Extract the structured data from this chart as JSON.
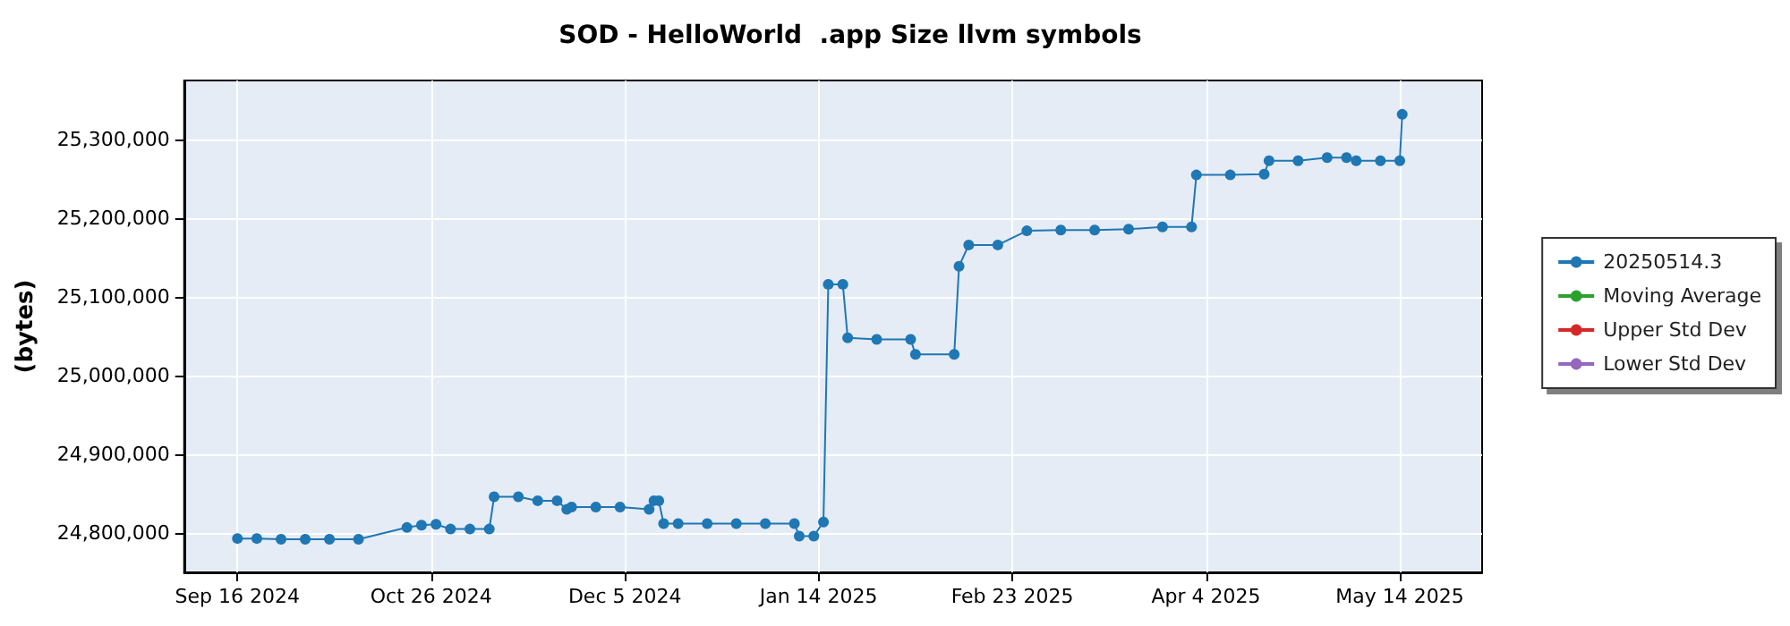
{
  "chart_data": {
    "type": "line",
    "title": "SOD - HelloWorld  .app Size llvm symbols",
    "ylabel": "(bytes)",
    "xlim": [
      "2024-09-05",
      "2025-05-31"
    ],
    "xticks": [
      {
        "value": "2024-09-16",
        "label": "Sep 16 2024"
      },
      {
        "value": "2024-10-26",
        "label": "Oct 26 2024"
      },
      {
        "value": "2024-12-05",
        "label": "Dec 5 2024"
      },
      {
        "value": "2025-01-14",
        "label": "Jan 14 2025"
      },
      {
        "value": "2025-02-23",
        "label": "Feb 23 2025"
      },
      {
        "value": "2025-04-04",
        "label": "Apr 4 2025"
      },
      {
        "value": "2025-05-14",
        "label": "May 14 2025"
      }
    ],
    "ylim": [
      24750000,
      25375000
    ],
    "yticks": [
      {
        "value": 24800000,
        "label": "24,800,000"
      },
      {
        "value": 24900000,
        "label": "24,900,000"
      },
      {
        "value": 25000000,
        "label": "25,000,000"
      },
      {
        "value": 25100000,
        "label": "25,100,000"
      },
      {
        "value": 25200000,
        "label": "25,200,000"
      },
      {
        "value": 25300000,
        "label": "25,300,000"
      }
    ],
    "x": [
      "2024-09-16",
      "2024-09-20",
      "2024-09-25",
      "2024-09-30",
      "2024-10-05",
      "2024-10-11",
      "2024-10-21",
      "2024-10-24",
      "2024-10-27",
      "2024-10-30",
      "2024-11-03",
      "2024-11-07",
      "2024-11-08",
      "2024-11-13",
      "2024-11-17",
      "2024-11-21",
      "2024-11-23",
      "2024-11-24",
      "2024-11-29",
      "2024-12-04",
      "2024-12-10",
      "2024-12-11",
      "2024-12-12",
      "2024-12-13",
      "2024-12-16",
      "2024-12-22",
      "2024-12-28",
      "2025-01-03",
      "2025-01-09",
      "2025-01-10",
      "2025-01-13",
      "2025-01-15",
      "2025-01-16",
      "2025-01-19",
      "2025-01-20",
      "2025-01-26",
      "2025-02-02",
      "2025-02-03",
      "2025-02-11",
      "2025-02-12",
      "2025-02-14",
      "2025-02-20",
      "2025-02-26",
      "2025-03-05",
      "2025-03-12",
      "2025-03-19",
      "2025-03-26",
      "2025-04-01",
      "2025-04-02",
      "2025-04-09",
      "2025-04-16",
      "2025-04-17",
      "2025-04-23",
      "2025-04-29",
      "2025-05-03",
      "2025-05-05",
      "2025-05-10",
      "2025-05-14",
      "2025-05-14T12:00"
    ],
    "series": [
      {
        "name": "20250514.3",
        "color": "#1f77b4",
        "values": [
          24793000,
          24793000,
          24792000,
          24792000,
          24792000,
          24792000,
          24807000,
          24810000,
          24811000,
          24805000,
          24805000,
          24805000,
          24846000,
          24846000,
          24841000,
          24841000,
          24830000,
          24833000,
          24833000,
          24833000,
          24830000,
          24841000,
          24841000,
          24812000,
          24812000,
          24812000,
          24812000,
          24812000,
          24812000,
          24796000,
          24796000,
          24814000,
          25116000,
          25116000,
          25048000,
          25046000,
          25046000,
          25027000,
          25027000,
          25139000,
          25166000,
          25166000,
          25184000,
          25185000,
          25185000,
          25186000,
          25189000,
          25189000,
          25255000,
          25255000,
          25256000,
          25273000,
          25273000,
          25277000,
          25277000,
          25273000,
          25273000,
          25273000,
          25332000
        ]
      },
      {
        "name": "Moving Average",
        "color": "#2ca02c",
        "values": [
          null,
          null,
          null,
          null,
          null,
          null,
          null,
          null,
          null,
          null,
          null,
          null,
          null,
          null,
          null,
          null,
          null,
          null,
          null,
          null,
          null,
          null,
          null,
          null,
          null,
          null,
          null,
          null,
          null,
          null,
          null,
          null,
          null,
          null,
          null,
          null,
          null,
          null,
          null,
          null,
          null,
          null,
          null,
          null,
          null,
          null,
          null,
          null,
          null,
          null,
          null,
          null,
          null,
          null,
          null,
          null,
          null,
          null,
          null
        ]
      },
      {
        "name": "Upper Std Dev",
        "color": "#d62728",
        "values": [
          null,
          null,
          null,
          null,
          null,
          null,
          null,
          null,
          null,
          null,
          null,
          null,
          null,
          null,
          null,
          null,
          null,
          null,
          null,
          null,
          null,
          null,
          null,
          null,
          null,
          null,
          null,
          null,
          null,
          null,
          null,
          null,
          null,
          null,
          null,
          null,
          null,
          null,
          null,
          null,
          null,
          null,
          null,
          null,
          null,
          null,
          null,
          null,
          null,
          null,
          null,
          null,
          null,
          null,
          null,
          null,
          null,
          null,
          null
        ]
      },
      {
        "name": "Lower Std Dev",
        "color": "#9467bd",
        "values": [
          null,
          null,
          null,
          null,
          null,
          null,
          null,
          null,
          null,
          null,
          null,
          null,
          null,
          null,
          null,
          null,
          null,
          null,
          null,
          null,
          null,
          null,
          null,
          null,
          null,
          null,
          null,
          null,
          null,
          null,
          null,
          null,
          null,
          null,
          null,
          null,
          null,
          null,
          null,
          null,
          null,
          null,
          null,
          null,
          null,
          null,
          null,
          null,
          null,
          null,
          null,
          null,
          null,
          null,
          null,
          null,
          null,
          null,
          null
        ]
      }
    ],
    "grid": true,
    "legend": "right",
    "marker": "circle",
    "line_style": "solid"
  }
}
